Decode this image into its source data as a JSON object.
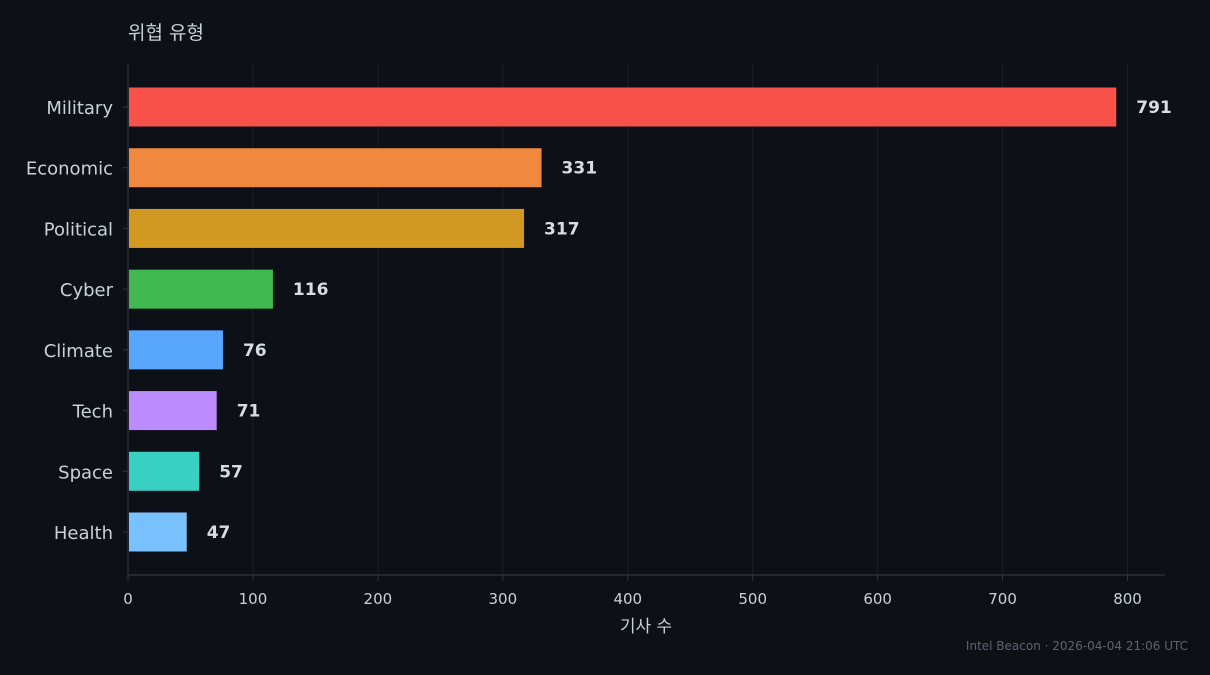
{
  "chart_data": {
    "type": "bar",
    "orientation": "horizontal",
    "title": "위협 유형",
    "xlabel": "기사 수",
    "ylabel": "",
    "categories": [
      "Military",
      "Economic",
      "Political",
      "Cyber",
      "Climate",
      "Tech",
      "Space",
      "Health"
    ],
    "values": [
      791,
      331,
      317,
      116,
      76,
      71,
      57,
      47
    ],
    "colors": [
      "#f85149",
      "#f0883e",
      "#d29922",
      "#3fb950",
      "#58a6ff",
      "#bc8cff",
      "#39d0c4",
      "#79c0ff"
    ],
    "xlim": [
      0,
      830
    ],
    "xticks": [
      0,
      100,
      200,
      300,
      400,
      500,
      600,
      700,
      800
    ],
    "grid": "vertical",
    "value_labels": [
      "791",
      "331",
      "317",
      "116",
      "76",
      "71",
      "57",
      "47"
    ]
  },
  "footer": "Intel Beacon · 2026-04-04 21:06 UTC",
  "theme": {
    "background": "#0d1017",
    "grid": "#1a1f27",
    "axis": "#30363d"
  }
}
